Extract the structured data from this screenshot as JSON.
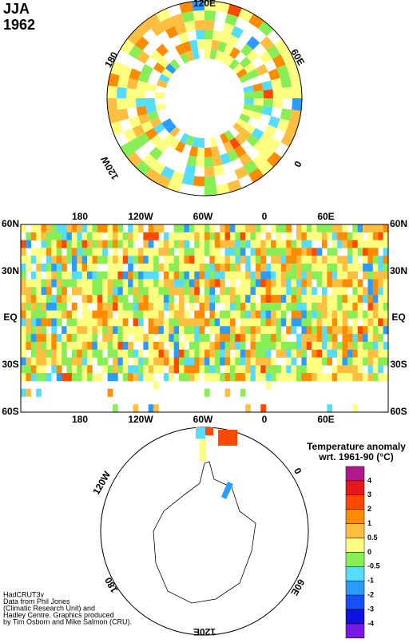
{
  "header": {
    "season": "JJA",
    "year": "1962"
  },
  "north_polar": {
    "labels": [
      "120E",
      "60E",
      "0",
      "120W",
      "180"
    ]
  },
  "map": {
    "lat_labels": [
      "60N",
      "30N",
      "EQ",
      "30S",
      "60S"
    ],
    "lon_labels": [
      "180",
      "120W",
      "60W",
      "0",
      "60E"
    ]
  },
  "south_polar": {
    "labels": [
      "120W",
      "0",
      "60E",
      "120E",
      "180"
    ]
  },
  "legend": {
    "title": "Temperature anomaly",
    "subtitle": "wrt. 1961-90  (°C)",
    "labels": [
      "4",
      "3",
      "2",
      "1",
      "0.5",
      "0",
      "-0.5",
      "-1",
      "-2",
      "-3",
      "-4"
    ],
    "colors": [
      "#b0188c",
      "#e81818",
      "#ff4800",
      "#ff8c00",
      "#ffbe40",
      "#ffff80",
      "#88ee55",
      "#55ddff",
      "#2a9cff",
      "#1450ff",
      "#1010e0",
      "#7a18e8"
    ]
  },
  "credits": [
    "HadCRUT3v",
    "Data from Phil Jones",
    "(Climatic Research Unit) and",
    "Hadley Centre.  Graphics produced",
    "by Tim Osborn and Mike Salmon (CRU)."
  ]
}
